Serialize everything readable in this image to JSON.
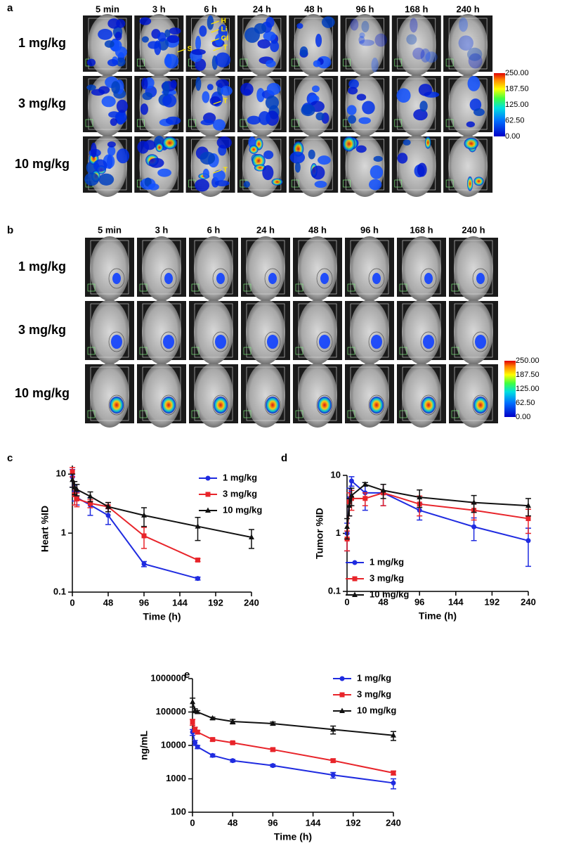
{
  "panel_a": {
    "label": "a",
    "columns": [
      "5 min",
      "3 h",
      "6 h",
      "24 h",
      "48 h",
      "96 h",
      "168 h",
      "240 h"
    ],
    "rows": [
      "1 mg/kg",
      "3 mg/kg",
      "10 mg/kg"
    ],
    "colorbar_ticks": [
      "250.00",
      "187.50",
      "125.00",
      "62.50",
      "0.00"
    ],
    "annotations": [
      "H",
      "Li",
      "GI",
      "S",
      "T",
      "T",
      "T"
    ]
  },
  "panel_b": {
    "label": "b",
    "columns": [
      "5 min",
      "3 h",
      "6 h",
      "24 h",
      "48 h",
      "96 h",
      "168 h",
      "240 h"
    ],
    "rows": [
      "1 mg/kg",
      "3 mg/kg",
      "10 mg/kg"
    ],
    "colorbar_ticks": [
      "250.00",
      "187.50",
      "125.00",
      "62.50",
      "0.00"
    ]
  },
  "chart_data": [
    {
      "type": "line",
      "panel": "c",
      "y_label": "Heart %ID",
      "x_label": "Time (h)",
      "log_y": true,
      "legend": "upper right",
      "x": [
        0.083,
        3,
        6,
        24,
        48,
        96,
        168,
        240
      ],
      "xlim": [
        0,
        240
      ],
      "xticks": [
        0,
        48,
        96,
        144,
        192,
        240
      ],
      "ylim": [
        0.1,
        14
      ],
      "yticks": [
        0.1,
        1,
        10
      ],
      "series": [
        {
          "name": "1 mg/kg",
          "color": "#1f2be0",
          "marker": "circle",
          "values": [
            9,
            5,
            4,
            3,
            2,
            0.3,
            0.17,
            null
          ],
          "errors": [
            3,
            1.5,
            1,
            1,
            0.6,
            0.03,
            0.01,
            null
          ]
        },
        {
          "name": "3 mg/kg",
          "color": "#e8242a",
          "marker": "square",
          "values": [
            11,
            4.5,
            3.8,
            3.2,
            2.8,
            0.9,
            0.35,
            null
          ],
          "errors": [
            2,
            1.5,
            1,
            0.5,
            0.5,
            0.35,
            0.02,
            null
          ]
        },
        {
          "name": "10 mg/kg",
          "color": "#111111",
          "marker": "triangle",
          "values": [
            8,
            6,
            5.5,
            4.2,
            2.8,
            2,
            1.3,
            0.85
          ],
          "errors": [
            2,
            1.5,
            1.2,
            0.8,
            0.5,
            0.7,
            0.55,
            0.3
          ]
        }
      ]
    },
    {
      "type": "line",
      "panel": "d",
      "y_label": "Tumor %ID",
      "x_label": "Time (h)",
      "log_y": true,
      "legend": "lower left",
      "x": [
        0.083,
        3,
        6,
        24,
        48,
        96,
        168,
        240
      ],
      "xlim": [
        0,
        240
      ],
      "xticks": [
        0,
        48,
        96,
        144,
        192,
        240
      ],
      "ylim": [
        0.1,
        10
      ],
      "yticks": [
        0.1,
        1,
        10
      ],
      "series": [
        {
          "name": "1 mg/kg",
          "color": "#1f2be0",
          "marker": "circle",
          "values": [
            1,
            4,
            8,
            5,
            5,
            2.5,
            1.3,
            0.75
          ],
          "errors": [
            0.5,
            2,
            1.5,
            2.5,
            2,
            0.8,
            0.55,
            0.48
          ]
        },
        {
          "name": "3 mg/kg",
          "color": "#e8242a",
          "marker": "square",
          "values": [
            0.8,
            3.5,
            4,
            4,
            5,
            3.2,
            2.5,
            1.8
          ],
          "errors": [
            0.3,
            1.5,
            1.5,
            1,
            2,
            1.2,
            0.8,
            0.8
          ]
        },
        {
          "name": "10 mg/kg",
          "color": "#111111",
          "marker": "triangle",
          "values": [
            1.3,
            3,
            4.5,
            7,
            5.5,
            4.2,
            3.4,
            3
          ],
          "errors": [
            0.5,
            1,
            1.5,
            0.5,
            1.5,
            1.4,
            1.1,
            1
          ]
        }
      ]
    },
    {
      "type": "line",
      "panel": "e",
      "y_label": "ng/mL",
      "x_label": "Time (h)",
      "log_y": true,
      "legend": "upper right",
      "x": [
        0.083,
        3,
        6,
        24,
        48,
        96,
        168,
        240
      ],
      "xlim": [
        0,
        240
      ],
      "xticks": [
        0,
        48,
        96,
        144,
        192,
        240
      ],
      "ylim": [
        100,
        1000000
      ],
      "yticks": [
        100,
        1000,
        10000,
        100000,
        1000000
      ],
      "series": [
        {
          "name": "1 mg/kg",
          "color": "#1f2be0",
          "marker": "circle",
          "values": [
            25000,
            12000,
            9000,
            5000,
            3500,
            2500,
            1300,
            750
          ],
          "errors": [
            5000,
            2000,
            1000,
            500,
            300,
            200,
            250,
            250
          ]
        },
        {
          "name": "3 mg/kg",
          "color": "#e8242a",
          "marker": "square",
          "values": [
            50000,
            30000,
            25000,
            15000,
            12000,
            7500,
            3500,
            1500
          ],
          "errors": [
            10000,
            5000,
            3000,
            1500,
            1000,
            800,
            400,
            200
          ]
        },
        {
          "name": "10 mg/kg",
          "color": "#111111",
          "marker": "triangle",
          "values": [
            200000,
            110000,
            100000,
            65000,
            52000,
            45000,
            30000,
            20000
          ],
          "errors": [
            60000,
            15000,
            10000,
            5000,
            8000,
            5000,
            8000,
            6000
          ]
        }
      ]
    }
  ]
}
